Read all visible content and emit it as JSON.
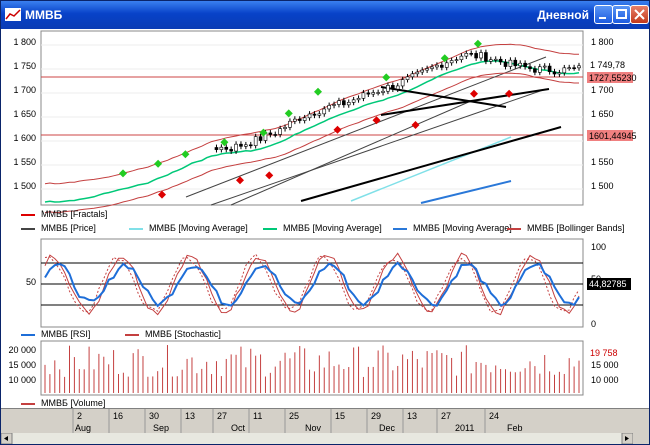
{
  "window": {
    "title": "ММВБ",
    "mode": "Дневной"
  },
  "colors": {
    "title_bar": "#0a3cb4",
    "up_arrow": "#22cc22",
    "down_arrow": "#dd0000",
    "sma_light": "#80e0e8",
    "sma_green": "#00c878",
    "sma_blue": "#2a78d8",
    "bollinger": "#c44040",
    "price_line": "#000000",
    "rsi": "#1e6ed8",
    "stochastic": "#c44040",
    "volume": "#c44040"
  },
  "price_panel": {
    "y_ticks": [
      "1 800",
      "1 750",
      "1 700",
      "1 650",
      "1 600",
      "1 550",
      "1 500"
    ],
    "last_price": "1 749,78",
    "level_upper": "1727,55230",
    "level_lower": "1601,44945",
    "legend": [
      "ММВБ [Fractals]",
      "ММВБ [Price]",
      "ММВБ [Moving Average]",
      "ММВБ [Moving Average]",
      "ММВБ [Moving Average]",
      "ММВБ [Bollinger Bands]"
    ]
  },
  "oscillator_panel": {
    "y_ticks": [
      "100",
      "50",
      "0"
    ],
    "last_value": "44,82785",
    "legend": [
      "ММВБ [RSI]",
      "ММВБ [Stochastic]"
    ]
  },
  "volume_panel": {
    "y_ticks": [
      "20 000",
      "15 000",
      "10 000"
    ],
    "last_value": "19 758",
    "legend": [
      "ММВБ [Volume]"
    ]
  },
  "time_axis": {
    "days": [
      "2",
      "16",
      "30",
      "13",
      "27",
      "11",
      "25",
      "15",
      "29",
      "13",
      "27",
      "24"
    ],
    "months": [
      "Aug",
      "Sep",
      "Oct",
      "Nov",
      "Dec",
      "2011",
      "Feb"
    ]
  },
  "chart_data": {
    "type": "line",
    "title": "",
    "series": [
      {
        "name": "ММВБ [Price]",
        "y_range": [
          1480,
          1800
        ],
        "values": [
          1481,
          1490,
          1502,
          1515,
          1528,
          1550,
          1572,
          1588,
          1585,
          1600,
          1620,
          1650,
          1668,
          1680,
          1700,
          1715,
          1735,
          1760,
          1780,
          1775,
          1760,
          1750,
          1748,
          1750
        ]
      },
      {
        "name": "ММВБ [RSI]",
        "ylim": [
          0,
          100
        ]
      },
      {
        "name": "ММВБ [Stochastic]",
        "ylim": [
          0,
          100
        ]
      },
      {
        "name": "ММВБ [Volume]",
        "ylim": [
          0,
          20000
        ]
      }
    ]
  }
}
